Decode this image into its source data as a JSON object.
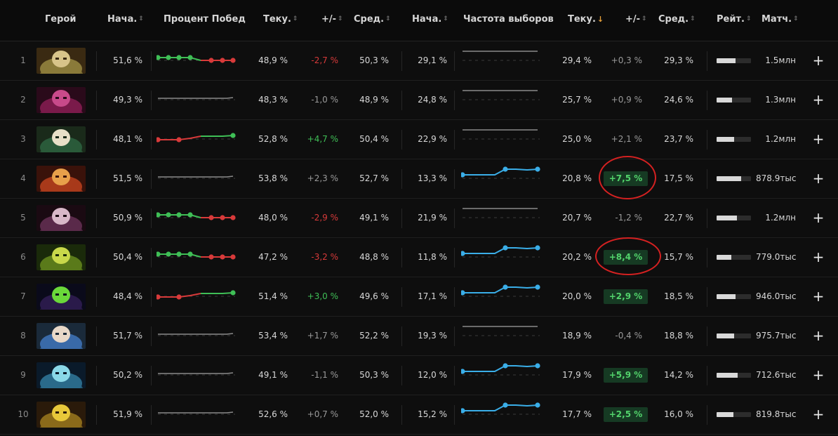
{
  "headers": {
    "hero": "Герой",
    "wr_start": "Нача.",
    "wr_chart": "Процент Побед",
    "wr_current": "Теку.",
    "wr_delta": "+/-",
    "wr_avg": "Сред.",
    "pr_start": "Нача.",
    "pr_chart": "Частота выборов",
    "pr_current": "Теку.",
    "pr_delta": "+/-",
    "pr_avg": "Сред.",
    "rating": "Рейт.",
    "matches": "Матч."
  },
  "colors": {
    "positive": "#3fbf56",
    "negative": "#d83a3a",
    "neutral": "#9a9a9a",
    "pickrate_line": "#3aaee8",
    "highlight_circle": "#d42121"
  },
  "icons": {
    "sort": "sort-icon",
    "sort_active": "sort-desc-arrow-icon",
    "add": "plus-icon"
  },
  "rows": [
    {
      "rank": "1",
      "portrait": "hero-portrait-1",
      "wr_start": "51,6 %",
      "wr_trend": "down",
      "wr_current": "48,9 %",
      "wr_delta": "-2,7 %",
      "wr_delta_type": "neg",
      "wr_avg": "50,3 %",
      "pr_start": "29,1 %",
      "pr_trend": "flat",
      "pr_current": "29,4 %",
      "pr_delta": "+0,3 %",
      "pr_delta_type": "neu",
      "pr_badge": false,
      "pr_avg": "29,3 %",
      "rating": 0.55,
      "matches": "1.5млн"
    },
    {
      "rank": "2",
      "portrait": "hero-portrait-2",
      "wr_start": "49,3 %",
      "wr_trend": "flat",
      "wr_current": "48,3 %",
      "wr_delta": "-1,0 %",
      "wr_delta_type": "neu",
      "wr_avg": "48,9 %",
      "pr_start": "24,8 %",
      "pr_trend": "flat",
      "pr_current": "25,7 %",
      "pr_delta": "+0,9 %",
      "pr_delta_type": "neu",
      "pr_badge": false,
      "pr_avg": "24,6 %",
      "rating": 0.45,
      "matches": "1.3млн"
    },
    {
      "rank": "3",
      "portrait": "hero-portrait-3",
      "wr_start": "48,1 %",
      "wr_trend": "up",
      "wr_current": "52,8 %",
      "wr_delta": "+4,7 %",
      "wr_delta_type": "pos",
      "wr_avg": "50,4 %",
      "pr_start": "22,9 %",
      "pr_trend": "flat",
      "pr_current": "25,0 %",
      "pr_delta": "+2,1 %",
      "pr_delta_type": "neu",
      "pr_badge": false,
      "pr_avg": "23,7 %",
      "rating": 0.52,
      "matches": "1.2млн"
    },
    {
      "rank": "4",
      "portrait": "hero-portrait-4",
      "wr_start": "51,5 %",
      "wr_trend": "flat",
      "wr_current": "53,8 %",
      "wr_delta": "+2,3 %",
      "wr_delta_type": "neu",
      "wr_avg": "52,7 %",
      "pr_start": "13,3 %",
      "pr_trend": "up",
      "pr_current": "20,8 %",
      "pr_delta": "+7,5 %",
      "pr_delta_type": "pos",
      "pr_badge": true,
      "pr_avg": "17,5 %",
      "rating": 0.72,
      "matches": "878.9тыс"
    },
    {
      "rank": "5",
      "portrait": "hero-portrait-5",
      "wr_start": "50,9 %",
      "wr_trend": "down",
      "wr_current": "48,0 %",
      "wr_delta": "-2,9 %",
      "wr_delta_type": "neg",
      "wr_avg": "49,1 %",
      "pr_start": "21,9 %",
      "pr_trend": "flat",
      "pr_current": "20,7 %",
      "pr_delta": "-1,2 %",
      "pr_delta_type": "neu",
      "pr_badge": false,
      "pr_avg": "22,7 %",
      "rating": 0.6,
      "matches": "1.2млн"
    },
    {
      "rank": "6",
      "portrait": "hero-portrait-6",
      "wr_start": "50,4 %",
      "wr_trend": "down",
      "wr_current": "47,2 %",
      "wr_delta": "-3,2 %",
      "wr_delta_type": "neg",
      "wr_avg": "48,8 %",
      "pr_start": "11,8 %",
      "pr_trend": "up",
      "pr_current": "20,2 %",
      "pr_delta": "+8,4 %",
      "pr_delta_type": "pos",
      "pr_badge": true,
      "pr_avg": "15,7 %",
      "rating": 0.42,
      "matches": "779.0тыс"
    },
    {
      "rank": "7",
      "portrait": "hero-portrait-7",
      "wr_start": "48,4 %",
      "wr_trend": "up",
      "wr_current": "51,4 %",
      "wr_delta": "+3,0 %",
      "wr_delta_type": "pos",
      "wr_avg": "49,6 %",
      "pr_start": "17,1 %",
      "pr_trend": "up",
      "pr_current": "20,0 %",
      "pr_delta": "+2,9 %",
      "pr_delta_type": "pos",
      "pr_badge": true,
      "pr_avg": "18,5 %",
      "rating": 0.55,
      "matches": "946.0тыс"
    },
    {
      "rank": "8",
      "portrait": "hero-portrait-8",
      "wr_start": "51,7 %",
      "wr_trend": "flat",
      "wr_current": "53,4 %",
      "wr_delta": "+1,7 %",
      "wr_delta_type": "neu",
      "wr_avg": "52,2 %",
      "pr_start": "19,3 %",
      "pr_trend": "flat",
      "pr_current": "18,9 %",
      "pr_delta": "-0,4 %",
      "pr_delta_type": "neu",
      "pr_badge": false,
      "pr_avg": "18,8 %",
      "rating": 0.5,
      "matches": "975.7тыс"
    },
    {
      "rank": "9",
      "portrait": "hero-portrait-9",
      "wr_start": "50,2 %",
      "wr_trend": "flat",
      "wr_current": "49,1 %",
      "wr_delta": "-1,1 %",
      "wr_delta_type": "neu",
      "wr_avg": "50,3 %",
      "pr_start": "12,0 %",
      "pr_trend": "up",
      "pr_current": "17,9 %",
      "pr_delta": "+5,9 %",
      "pr_delta_type": "pos",
      "pr_badge": true,
      "pr_avg": "14,2 %",
      "rating": 0.62,
      "matches": "712.6тыс"
    },
    {
      "rank": "10",
      "portrait": "hero-portrait-10",
      "wr_start": "51,9 %",
      "wr_trend": "flat",
      "wr_current": "52,6 %",
      "wr_delta": "+0,7 %",
      "wr_delta_type": "neu",
      "wr_avg": "52,0 %",
      "pr_start": "15,2 %",
      "pr_trend": "up",
      "pr_current": "17,7 %",
      "pr_delta": "+2,5 %",
      "pr_delta_type": "pos",
      "pr_badge": true,
      "pr_avg": "16,0 %",
      "rating": 0.48,
      "matches": "819.8тыс"
    }
  ]
}
